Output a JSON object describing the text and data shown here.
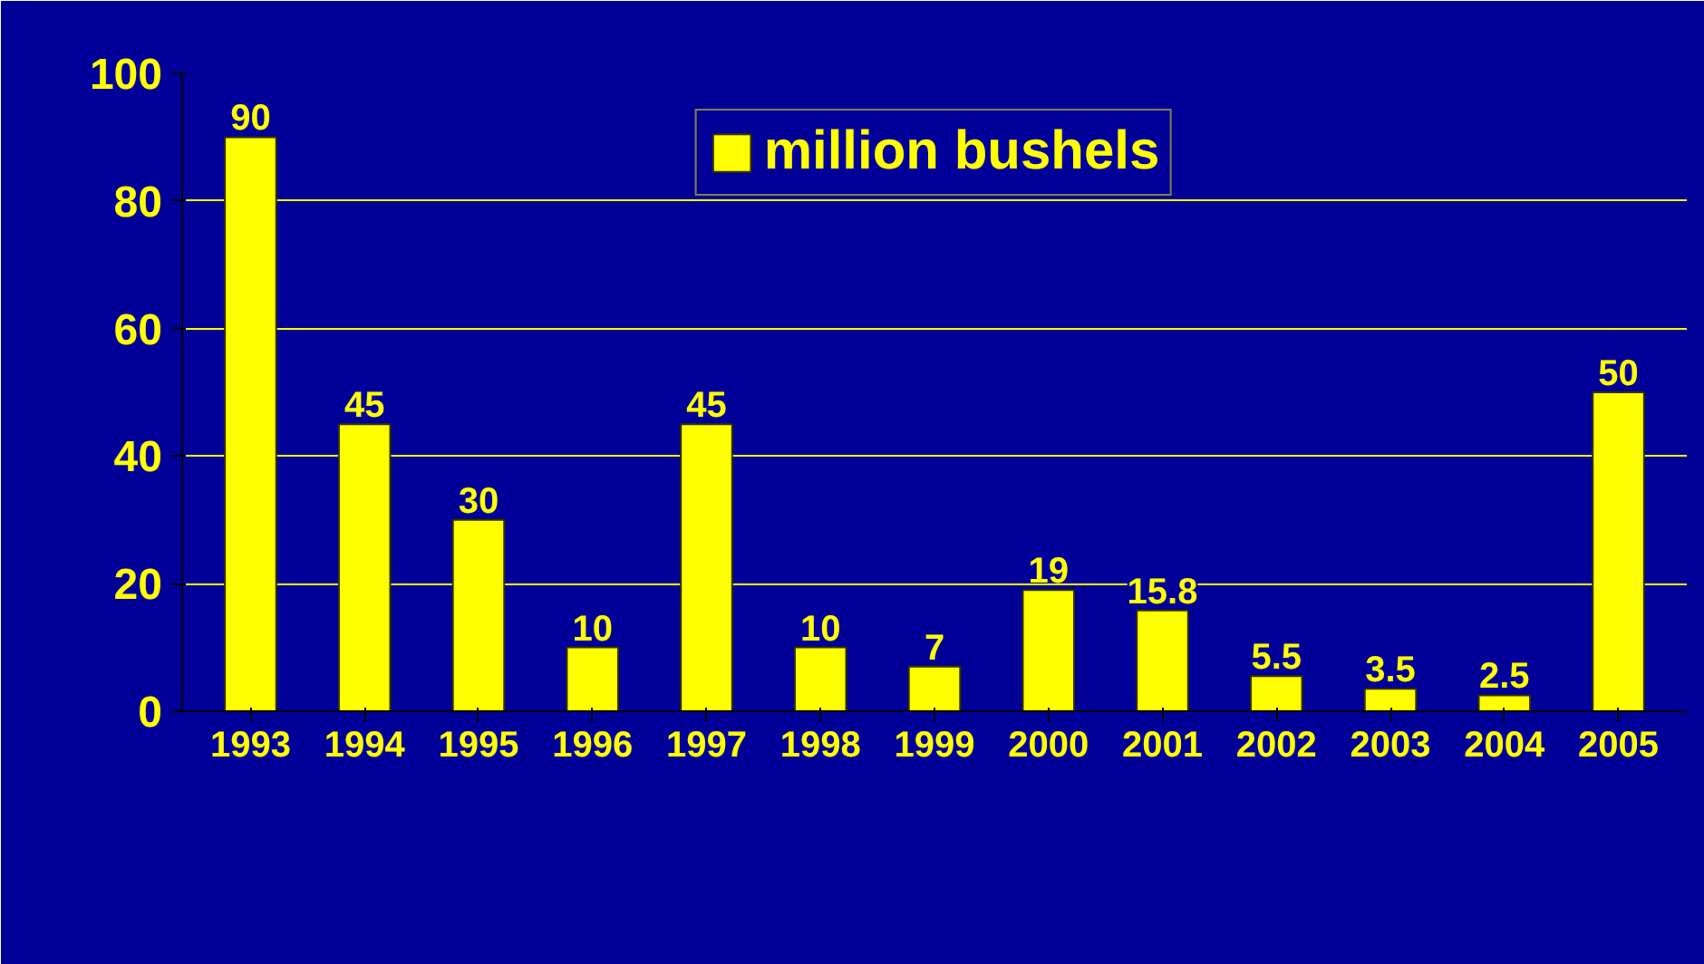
{
  "chart_data": {
    "type": "bar",
    "categories": [
      "1993",
      "1994",
      "1995",
      "1996",
      "1997",
      "1998",
      "1999",
      "2000",
      "2001",
      "2002",
      "2003",
      "2004",
      "2005"
    ],
    "series": [
      {
        "name": "million bushels",
        "color": "#ffff00",
        "values": [
          90,
          45,
          30,
          10,
          45,
          10,
          7,
          19,
          15.8,
          5.5,
          3.5,
          2.5,
          50
        ]
      }
    ],
    "ylim": [
      0,
      100
    ],
    "yticks": [
      0,
      20,
      40,
      60,
      80,
      100
    ],
    "grid": "y",
    "legend": "top",
    "data_labels": true
  }
}
